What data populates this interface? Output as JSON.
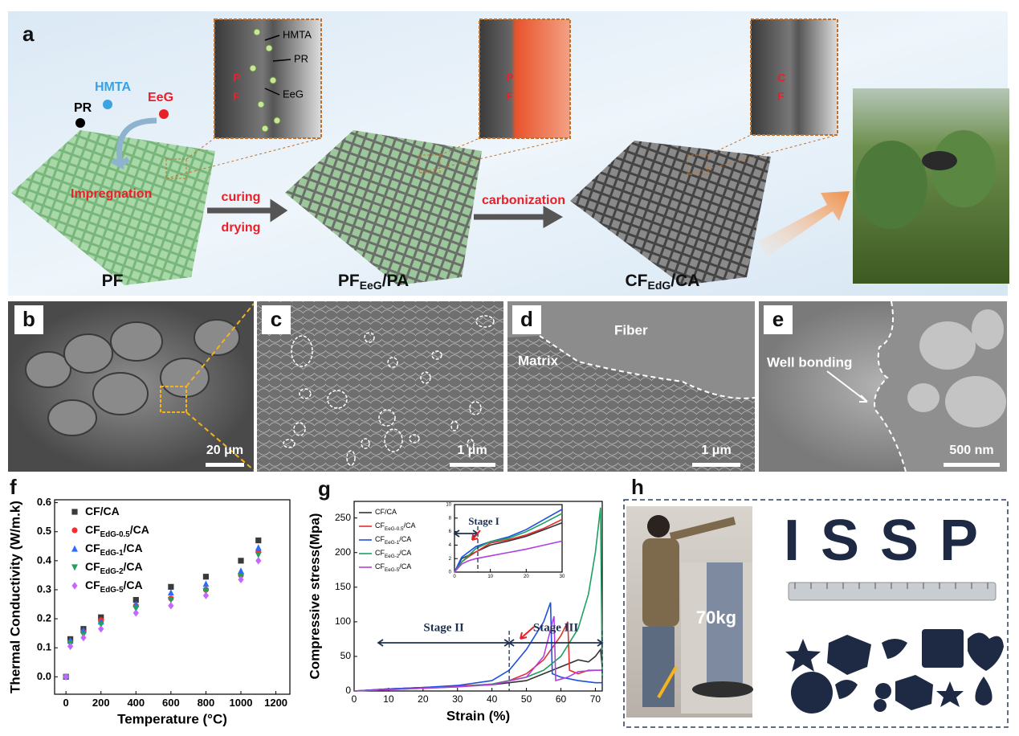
{
  "panels": {
    "a": {
      "label": "a",
      "reagents": [
        "PR",
        "HMTA",
        "EeG"
      ],
      "inset1_labels": [
        "HMTA",
        "PR",
        "EeG"
      ],
      "inset1_letters": [
        "P",
        "F"
      ],
      "inset2_letters": [
        "P",
        "F"
      ],
      "inset3_letters": [
        "C",
        "F"
      ],
      "process": [
        "Impregnation",
        "curing",
        "drying",
        "carbonization"
      ],
      "stages": [
        [
          "PF"
        ],
        [
          "PF",
          "EeG",
          "/PA"
        ],
        [
          "CF",
          "EdG",
          "/CA"
        ]
      ]
    },
    "b": {
      "label": "b",
      "scale": "20 μm"
    },
    "c": {
      "label": "c",
      "scale": "1 μm"
    },
    "d": {
      "label": "d",
      "scale": "1 μm",
      "notes": [
        "Fiber",
        "Matrix"
      ]
    },
    "e": {
      "label": "e",
      "scale": "500 nm",
      "notes": [
        "Well bonding"
      ]
    },
    "f": {
      "label": "f"
    },
    "g": {
      "label": "g"
    },
    "h": {
      "label": "h",
      "load": "70kg",
      "word": "ISSP"
    }
  },
  "chart_data": [
    {
      "type": "scatter",
      "xlabel": "Temperature (°C)",
      "ylabel": "Thermal Conductivity (W/m.k)",
      "x": [
        0,
        25,
        100,
        200,
        400,
        600,
        800,
        1000,
        1100
      ],
      "xlim": [
        -65,
        1280
      ],
      "xticks": [
        0,
        200,
        400,
        600,
        800,
        1000,
        1200
      ],
      "ylim": [
        -0.06,
        0.61
      ],
      "yticks": [
        {
          "value": 0,
          "label": "0.0"
        },
        0.1,
        0.2,
        0.3,
        0.4,
        0.5,
        0.6
      ],
      "legend": "upper left",
      "series": [
        {
          "name": [
            "CF/CA"
          ],
          "color": "#3a3a3a",
          "marker": "square",
          "values": [
            0.0,
            0.13,
            0.165,
            0.205,
            0.265,
            0.31,
            0.345,
            0.4,
            0.47
          ]
        },
        {
          "name": [
            "CF",
            "EdG-0.5",
            "/CA"
          ],
          "color": "#ff2a2a",
          "marker": "circle",
          "values": [
            0.0,
            0.12,
            0.155,
            0.195,
            0.245,
            0.27,
            0.3,
            0.35,
            0.43
          ]
        },
        {
          "name": [
            "CF",
            "EdG-1",
            "/CA"
          ],
          "color": "#2a6cff",
          "marker": "triangle-up",
          "values": [
            0.0,
            0.125,
            0.16,
            0.19,
            0.25,
            0.29,
            0.32,
            0.365,
            0.445
          ]
        },
        {
          "name": [
            "CF",
            "EdG-2",
            "/CA"
          ],
          "color": "#22a05a",
          "marker": "triangle-down",
          "values": [
            0.0,
            0.115,
            0.145,
            0.18,
            0.235,
            0.265,
            0.295,
            0.345,
            0.42
          ]
        },
        {
          "name": [
            "CF",
            "EdG-5",
            "/CA"
          ],
          "color": "#c466ff",
          "marker": "diamond",
          "values": [
            0.0,
            0.105,
            0.135,
            0.165,
            0.22,
            0.245,
            0.28,
            0.335,
            0.4
          ]
        }
      ]
    },
    {
      "type": "line",
      "xlabel": "Strain (%)",
      "ylabel": "Compressive stress(Mpa)",
      "xlim": [
        0,
        72
      ],
      "xticks": [
        0,
        10,
        20,
        30,
        40,
        50,
        60,
        70
      ],
      "ylim": [
        0,
        274
      ],
      "yticks": [
        0,
        50,
        100,
        150,
        200,
        250
      ],
      "legend": "upper left",
      "stages": [
        {
          "label": "Stage II",
          "from": 7,
          "to": 45
        },
        {
          "label": "Stage III",
          "from": 45,
          "to": 72
        }
      ],
      "series": [
        {
          "name": [
            "CF/CA"
          ],
          "color": "#333333",
          "x": [
            0,
            10,
            20,
            30,
            40,
            50,
            55,
            60,
            65,
            68,
            70,
            71.5,
            72
          ],
          "values": [
            0,
            3,
            5,
            7,
            9,
            15,
            25,
            35,
            45,
            42,
            50,
            60,
            35
          ]
        },
        {
          "name": [
            "CF",
            "EeG-0.5",
            "/CA"
          ],
          "color": "#e03030",
          "x": [
            0,
            10,
            20,
            30,
            40,
            45,
            50,
            55,
            60,
            62,
            62.5,
            65,
            68,
            72
          ],
          "values": [
            0,
            3,
            5,
            7,
            10,
            15,
            25,
            45,
            80,
            100,
            30,
            25,
            30,
            30
          ]
        },
        {
          "name": [
            "CF",
            "EeG-1",
            "/CA"
          ],
          "color": "#1f4fe0",
          "x": [
            0,
            10,
            20,
            30,
            40,
            45,
            50,
            55,
            57,
            57.5,
            60,
            65,
            70,
            72
          ],
          "values": [
            0,
            3,
            5,
            8,
            15,
            30,
            60,
            100,
            128,
            25,
            20,
            15,
            12,
            12
          ]
        },
        {
          "name": [
            "CF",
            "EeG-2",
            "/CA"
          ],
          "color": "#20a060",
          "x": [
            0,
            10,
            20,
            30,
            40,
            50,
            55,
            60,
            65,
            68,
            70,
            71.5,
            72
          ],
          "values": [
            0,
            2,
            4,
            6,
            10,
            20,
            30,
            50,
            90,
            140,
            200,
            265,
            20
          ]
        },
        {
          "name": [
            "CF",
            "EeG-5",
            "/CA"
          ],
          "color": "#b040e0",
          "x": [
            0,
            10,
            20,
            30,
            40,
            50,
            55,
            58,
            58.5,
            62,
            65,
            70,
            72
          ],
          "values": [
            0,
            2,
            4,
            6,
            9,
            20,
            50,
            108,
            15,
            20,
            28,
            30,
            30
          ]
        }
      ]
    },
    {
      "type": "line",
      "xlim": [
        0,
        30
      ],
      "xticks": [
        0,
        10,
        20,
        30
      ],
      "ylim": [
        0,
        10
      ],
      "yticks": [
        0,
        2,
        4,
        6,
        8,
        10
      ],
      "stages": [
        {
          "label": "Stage I",
          "from": 0,
          "to": 6.5
        }
      ],
      "series": [
        {
          "color": "#333333",
          "x": [
            0,
            2,
            4,
            6,
            10,
            15,
            20,
            25,
            30
          ],
          "values": [
            0,
            2,
            2.5,
            3,
            4,
            4.6,
            5.3,
            6.3,
            7.3
          ]
        },
        {
          "color": "#e03030",
          "x": [
            0,
            2,
            4,
            6,
            10,
            15,
            20,
            25,
            30
          ],
          "values": [
            0,
            1.5,
            2.3,
            3,
            4.3,
            4.8,
            5.5,
            6.5,
            7.8
          ]
        },
        {
          "color": "#1f4fe0",
          "x": [
            0,
            2,
            4,
            6,
            10,
            15,
            20,
            25,
            30
          ],
          "values": [
            0,
            2.2,
            3,
            3.8,
            4.5,
            5.2,
            6.3,
            7.8,
            9.3
          ]
        },
        {
          "color": "#20a060",
          "x": [
            0,
            2,
            4,
            6,
            10,
            15,
            20,
            25,
            30
          ],
          "values": [
            0,
            1.5,
            2.5,
            3.5,
            4.5,
            5,
            6,
            7.3,
            8.7
          ]
        },
        {
          "color": "#b040e0",
          "x": [
            0,
            2,
            4,
            6,
            10,
            15,
            20,
            25,
            30
          ],
          "values": [
            0,
            1.2,
            1.7,
            2,
            2.4,
            2.9,
            3.4,
            4,
            4.6
          ]
        }
      ]
    }
  ]
}
